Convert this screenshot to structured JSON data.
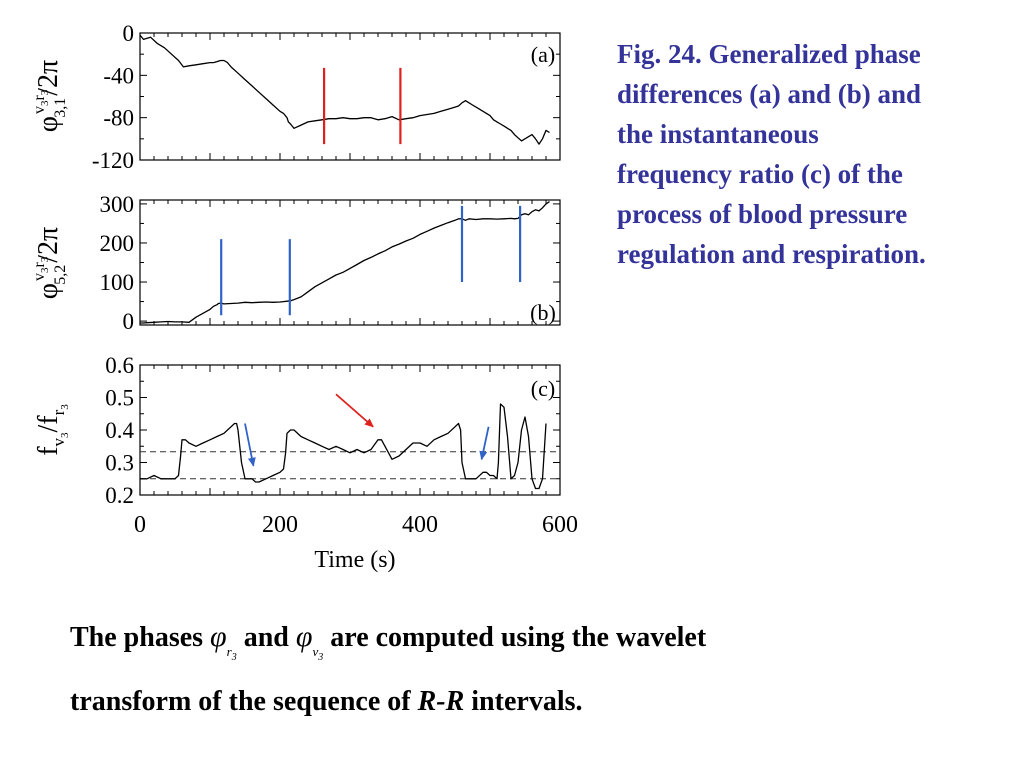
{
  "chart_data": [
    {
      "panel": "(a)",
      "type": "line",
      "ylabel": "φ^{v3r3}_{3,1}/2π",
      "ylabel_parts": {
        "sup": "v",
        "sup_sub1": "3",
        "sup2": "r",
        "sup_sub2": "3",
        "base": "φ",
        "sub": "3,1",
        "tail": "/2π"
      },
      "ylim": [
        -120,
        0
      ],
      "yticks": [
        "0",
        "-40",
        "-80",
        "-120"
      ],
      "ytick_values": [
        0,
        -40,
        -80,
        -120
      ],
      "xlim": [
        0,
        600
      ],
      "series": [
        {
          "color": "#000000",
          "x": [
            0,
            5,
            15,
            25,
            35,
            45,
            55,
            62,
            70,
            80,
            90,
            100,
            105,
            110,
            115,
            120,
            125,
            130,
            140,
            150,
            160,
            170,
            180,
            190,
            200,
            205,
            210,
            212,
            215,
            220,
            230,
            240,
            250,
            260,
            270,
            280,
            290,
            300,
            310,
            320,
            330,
            340,
            350,
            360,
            370,
            380,
            390,
            400,
            410,
            420,
            430,
            440,
            450,
            455,
            460,
            465,
            470,
            475,
            480,
            490,
            500,
            505,
            510,
            515,
            520,
            525,
            530,
            535,
            540,
            545,
            550,
            555,
            560,
            565,
            570,
            575,
            580,
            585
          ],
          "y": [
            -2,
            -6,
            -4,
            -10,
            -14,
            -20,
            -26,
            -32,
            -31,
            -30,
            -29,
            -28,
            -28,
            -27,
            -26,
            -26,
            -28,
            -32,
            -38,
            -44,
            -50,
            -56,
            -62,
            -68,
            -74,
            -76,
            -80,
            -84,
            -86,
            -90,
            -87,
            -84,
            -83,
            -82,
            -81,
            -81,
            -80,
            -81,
            -81,
            -80,
            -80,
            -82,
            -81,
            -79,
            -82,
            -81,
            -80,
            -78,
            -77,
            -76,
            -74,
            -72,
            -70,
            -69,
            -66,
            -64,
            -66,
            -68,
            -70,
            -74,
            -78,
            -82,
            -84,
            -86,
            -88,
            -90,
            -92,
            -96,
            -99,
            -102,
            -100,
            -98,
            -96,
            -100,
            -105,
            -100,
            -92,
            -94
          ]
        }
      ],
      "markers": [
        {
          "x": 263,
          "y_from": -33,
          "y_to": -105,
          "color": "#e0201c"
        },
        {
          "x": 372,
          "y_from": -33,
          "y_to": -105,
          "color": "#e0201c"
        }
      ]
    },
    {
      "panel": "(b)",
      "type": "line",
      "ylabel": "φ^{v3r3}_{5,2}/2π",
      "ylabel_parts": {
        "sup": "v",
        "sup_sub1": "3",
        "sup2": "r",
        "sup_sub2": "3",
        "base": "φ",
        "sub": "5,2",
        "tail": "/2π"
      },
      "ylim": [
        -10,
        310
      ],
      "yticks": [
        "300",
        "200",
        "100",
        "0"
      ],
      "ytick_values": [
        300,
        200,
        100,
        0
      ],
      "xlim": [
        0,
        600
      ],
      "series": [
        {
          "color": "#000000",
          "x": [
            0,
            5,
            10,
            20,
            30,
            40,
            50,
            60,
            70,
            80,
            90,
            100,
            105,
            110,
            112,
            115,
            120,
            130,
            140,
            150,
            160,
            170,
            180,
            190,
            200,
            205,
            210,
            215,
            220,
            230,
            240,
            250,
            260,
            270,
            280,
            290,
            300,
            310,
            320,
            330,
            340,
            350,
            360,
            370,
            380,
            390,
            400,
            410,
            420,
            430,
            440,
            450,
            455,
            460,
            465,
            470,
            480,
            490,
            500,
            510,
            520,
            530,
            535,
            540,
            545,
            550,
            555,
            560,
            565,
            570,
            575,
            580,
            585
          ],
          "y": [
            -5,
            -5,
            -4,
            -3,
            -2,
            -1,
            -2,
            -2,
            -3,
            10,
            20,
            30,
            38,
            42,
            45,
            46,
            44,
            45,
            46,
            48,
            47,
            48,
            49,
            48,
            49,
            50,
            51,
            52,
            55,
            62,
            75,
            88,
            98,
            108,
            118,
            125,
            135,
            145,
            155,
            163,
            172,
            180,
            190,
            197,
            205,
            212,
            222,
            230,
            238,
            245,
            252,
            258,
            262,
            262,
            258,
            262,
            260,
            262,
            262,
            261,
            262,
            263,
            262,
            263,
            272,
            275,
            272,
            280,
            285,
            282,
            290,
            300,
            306
          ]
        }
      ],
      "markers": [
        {
          "x": 116,
          "y_from": 210,
          "y_to": 15,
          "color": "#2f63c8"
        },
        {
          "x": 214,
          "y_from": 210,
          "y_to": 15,
          "color": "#2f63c8"
        },
        {
          "x": 460,
          "y_from": 295,
          "y_to": 100,
          "color": "#2f63c8"
        },
        {
          "x": 543,
          "y_from": 295,
          "y_to": 100,
          "color": "#2f63c8"
        }
      ]
    },
    {
      "panel": "(c)",
      "type": "line",
      "ylabel": "f_{v3}/f_{r3}",
      "ylabel_parts": {
        "base1": "f",
        "sub1": "v",
        "sub1_sub": "3",
        "mid": "/f",
        "sub2": "r",
        "sub2_sub": "3"
      },
      "ylim": [
        0.2,
        0.6
      ],
      "yticks": [
        "0.6",
        "0.5",
        "0.4",
        "0.3",
        "0.2"
      ],
      "ytick_values": [
        0.6,
        0.5,
        0.4,
        0.3,
        0.2
      ],
      "xlabel": "Time (s)",
      "xlim": [
        0,
        600
      ],
      "xticks": [
        "0",
        "200",
        "400",
        "600"
      ],
      "xtick_values": [
        0,
        200,
        400,
        600
      ],
      "reference_lines": [
        0.333,
        0.25
      ],
      "series": [
        {
          "color": "#000000",
          "x": [
            0,
            10,
            20,
            30,
            40,
            50,
            55,
            58,
            60,
            65,
            70,
            80,
            90,
            100,
            110,
            120,
            125,
            130,
            135,
            138,
            140,
            145,
            150,
            160,
            165,
            170,
            180,
            190,
            200,
            205,
            208,
            210,
            215,
            220,
            230,
            240,
            250,
            260,
            270,
            280,
            290,
            300,
            310,
            320,
            330,
            340,
            345,
            350,
            355,
            360,
            370,
            380,
            390,
            400,
            410,
            420,
            430,
            440,
            450,
            455,
            458,
            460,
            465,
            470,
            480,
            490,
            495,
            500,
            505,
            510,
            512,
            515,
            520,
            525,
            530,
            535,
            540,
            545,
            550,
            555,
            560,
            565,
            570,
            575,
            580
          ],
          "y": [
            0.25,
            0.25,
            0.26,
            0.25,
            0.25,
            0.25,
            0.26,
            0.32,
            0.37,
            0.37,
            0.36,
            0.35,
            0.36,
            0.37,
            0.38,
            0.39,
            0.4,
            0.41,
            0.42,
            0.42,
            0.4,
            0.3,
            0.25,
            0.25,
            0.24,
            0.24,
            0.25,
            0.26,
            0.27,
            0.28,
            0.33,
            0.39,
            0.4,
            0.4,
            0.38,
            0.37,
            0.36,
            0.35,
            0.34,
            0.35,
            0.34,
            0.33,
            0.34,
            0.33,
            0.34,
            0.37,
            0.37,
            0.35,
            0.33,
            0.31,
            0.32,
            0.34,
            0.36,
            0.36,
            0.35,
            0.37,
            0.38,
            0.39,
            0.41,
            0.42,
            0.4,
            0.3,
            0.25,
            0.25,
            0.25,
            0.27,
            0.27,
            0.26,
            0.26,
            0.25,
            0.3,
            0.48,
            0.47,
            0.38,
            0.25,
            0.26,
            0.3,
            0.4,
            0.44,
            0.38,
            0.25,
            0.22,
            0.22,
            0.25,
            0.42
          ]
        }
      ],
      "arrows": [
        {
          "x1": 150,
          "y1": 0.42,
          "x2": 162,
          "y2": 0.29,
          "color": "#2f63c8"
        },
        {
          "x1": 280,
          "y1": 0.51,
          "x2": 333,
          "y2": 0.41,
          "color": "#e0201c"
        },
        {
          "x1": 498,
          "y1": 0.41,
          "x2": 488,
          "y2": 0.31,
          "color": "#2f63c8"
        }
      ]
    }
  ],
  "caption": {
    "lines": [
      "Fig. 24. Generalized phase",
      "differences  (a) and (b) and",
      "the instantaneous",
      "frequency ratio (c) of the",
      "process of blood pressure",
      "regulation and respiration."
    ],
    "color": "#333399"
  },
  "bottom_text": {
    "part1": "The phases ",
    "phi": "φ",
    "phi1_sub": "r",
    "phi1_subsub": "3",
    "part2": " and ",
    "phi2_sub": "v",
    "phi2_subsub": "3",
    "part3": " are computed using the wavelet",
    "line2_part1": "transform of the sequence of ",
    "line2_italic": "R-R",
    "line2_part2": " intervals."
  },
  "colors": {
    "red_marker": "#e0201c",
    "blue_marker": "#2f63c8",
    "caption": "#333399",
    "dashed": "#333333"
  }
}
